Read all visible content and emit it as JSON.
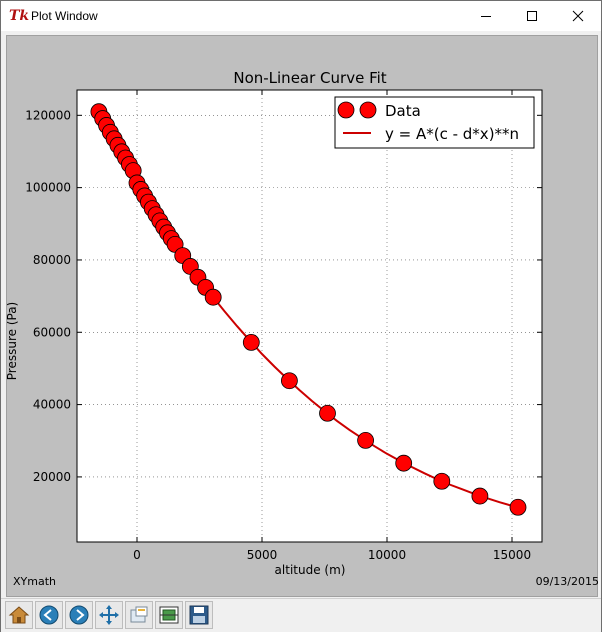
{
  "window": {
    "title": "Plot Window",
    "app_icon_text": "Tk"
  },
  "footer": {
    "left_text": "XYmath",
    "right_text": "09/13/2015"
  },
  "toolbar": {
    "buttons": [
      {
        "icon": "home-icon"
      },
      {
        "icon": "back-arrow-icon"
      },
      {
        "icon": "forward-arrow-icon"
      },
      {
        "icon": "pan-move-icon"
      },
      {
        "icon": "zoom-rect-icon"
      },
      {
        "icon": "configure-subplots-icon"
      },
      {
        "icon": "save-icon"
      }
    ]
  },
  "colors": {
    "marker": "#ff0000",
    "fit_line": "#cc0000",
    "figure_background": "#bfbfbf",
    "axes_background": "#ffffff"
  },
  "chart_data": {
    "type": "scatter",
    "title": "Non-Linear Curve Fit",
    "xlabel": "altitude (m)",
    "ylabel": "Pressure (Pa)",
    "xlim": [
      -2400,
      16200
    ],
    "ylim": [
      2000,
      127000
    ],
    "xticks": [
      0,
      5000,
      10000,
      15000
    ],
    "xtick_labels": [
      "0",
      "5000",
      "10000",
      "15000"
    ],
    "yticks": [
      20000,
      40000,
      60000,
      80000,
      100000,
      120000
    ],
    "ytick_labels": [
      "20000",
      "40000",
      "60000",
      "80000",
      "100000",
      "120000"
    ],
    "grid": true,
    "legend_position": "top-right",
    "legend": [
      "Data",
      "y = A*(c - d*x)**n"
    ],
    "series": [
      {
        "name": "Data",
        "style": "markers",
        "x": [
          -1524,
          -1372,
          -1219,
          -1067,
          -914,
          -762,
          -610,
          -457,
          -305,
          -152,
          0,
          152,
          305,
          457,
          610,
          762,
          914,
          1067,
          1219,
          1372,
          1524,
          1829,
          2134,
          2438,
          2743,
          3048,
          4572,
          6096,
          7620,
          9144,
          10668,
          12192,
          13716,
          15240
        ],
        "y": [
          121000,
          119100,
          117200,
          115300,
          113500,
          111700,
          109900,
          108200,
          106400,
          104700,
          101300,
          99500,
          97700,
          96000,
          94200,
          92500,
          90800,
          89100,
          87500,
          85900,
          84300,
          81200,
          78200,
          75200,
          72400,
          69700,
          57200,
          46600,
          37600,
          30100,
          23800,
          18800,
          14700,
          11600
        ]
      },
      {
        "name": "y = A*(c - d*x)**n",
        "style": "line",
        "x": [
          -1524,
          -1000,
          -500,
          0,
          500,
          1000,
          1500,
          2000,
          2500,
          3000,
          3500,
          4000,
          4500,
          5000,
          5500,
          6000,
          6500,
          7000,
          7500,
          8000,
          8500,
          9000,
          9500,
          10000,
          10500,
          11000,
          11500,
          12000,
          12500,
          13000,
          13500,
          14000,
          14500,
          15000,
          15240
        ],
        "y": [
          121000,
          114300,
          107600,
          101300,
          95500,
          89900,
          84600,
          79500,
          74700,
          70100,
          65800,
          61700,
          57800,
          54000,
          50500,
          47200,
          44000,
          41000,
          38200,
          35500,
          33000,
          30700,
          28500,
          26400,
          24500,
          22700,
          21000,
          19400,
          17900,
          16600,
          15300,
          14100,
          13000,
          12000,
          11600
        ]
      }
    ]
  }
}
